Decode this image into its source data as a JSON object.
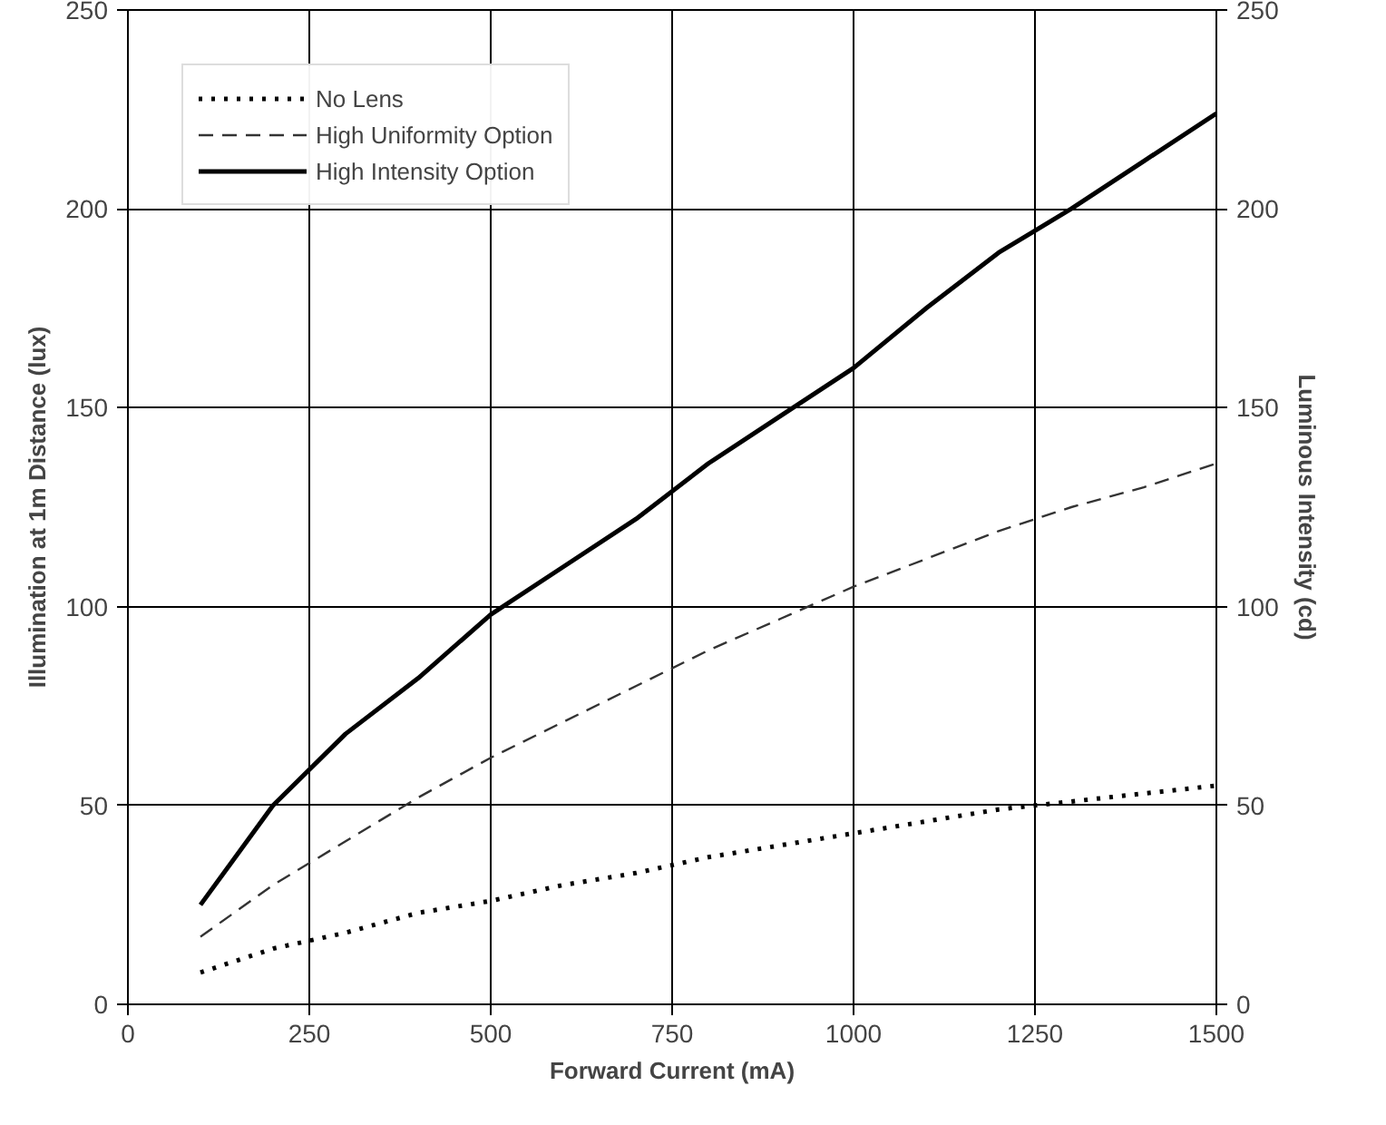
{
  "chart_data": {
    "type": "line",
    "xlabel": "Forward Current (mA)",
    "ylabel": "Illumination at 1m Distance (lux)",
    "y2label": "Luminous Intensity (cd)",
    "x": [
      100,
      200,
      300,
      400,
      500,
      600,
      700,
      800,
      900,
      1000,
      1100,
      1200,
      1300,
      1400,
      1500
    ],
    "series": [
      {
        "name": "No Lens",
        "color": "#000000",
        "line_style": "dotted",
        "values": [
          8,
          14,
          18,
          23,
          26,
          30,
          33,
          37,
          40,
          43,
          46,
          49,
          51,
          53,
          55
        ]
      },
      {
        "name": "High Uniformity Option",
        "color": "#333333",
        "line_style": "dashed",
        "values": [
          17,
          30,
          41,
          52,
          62,
          71,
          80,
          89,
          97,
          105,
          112,
          119,
          125,
          130,
          136
        ]
      },
      {
        "name": "High Intensity Option",
        "color": "#000000",
        "line_style": "solid",
        "values": [
          25,
          50,
          68,
          82,
          98,
          110,
          122,
          136,
          148,
          160,
          175,
          189,
          200,
          212,
          224
        ]
      }
    ],
    "xlim": [
      0,
      1500
    ],
    "xticks": [
      0,
      250,
      500,
      750,
      1000,
      1250,
      1500
    ],
    "ylim": [
      0,
      250
    ],
    "yticks": [
      0,
      50,
      100,
      150,
      200,
      250
    ],
    "y2lim": [
      0,
      250
    ],
    "y2ticks": [
      0,
      50,
      100,
      150,
      200,
      250
    ],
    "grid": true,
    "legend": "top left",
    "marker": "none"
  }
}
